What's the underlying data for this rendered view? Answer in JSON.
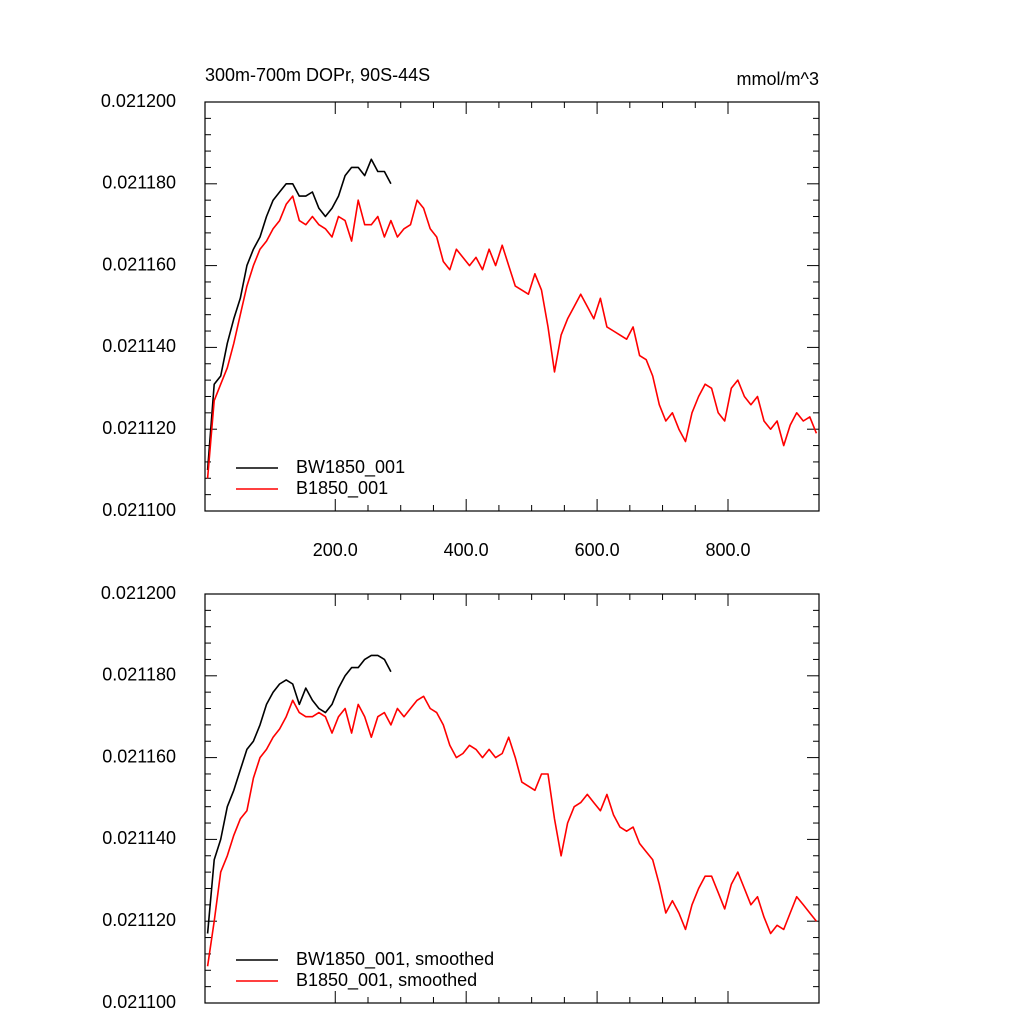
{
  "chart_data": [
    {
      "type": "line",
      "title": "300m-700m DOPr, 90S-44S",
      "y_units": "mmol/m^3",
      "xlim": [
        1,
        939
      ],
      "xticks": [
        {
          "value": 200,
          "label": "200.0"
        },
        {
          "value": 400,
          "label": "400.0"
        },
        {
          "value": 600,
          "label": "600.0"
        },
        {
          "value": 800,
          "label": "800.0"
        }
      ],
      "x_tick_labels": true,
      "ylim": [
        0.0211,
        0.0212
      ],
      "yticks": [
        {
          "value": 0.0211,
          "label": "0.021100"
        },
        {
          "value": 0.02112,
          "label": "0.021120"
        },
        {
          "value": 0.02114,
          "label": "0.021140"
        },
        {
          "value": 0.02116,
          "label": "0.021160"
        },
        {
          "value": 0.02118,
          "label": "0.021180"
        },
        {
          "value": 0.0212,
          "label": "0.021200"
        }
      ],
      "legend": "lower left",
      "x": [
        5,
        15,
        25,
        35,
        45,
        55,
        65,
        75,
        85,
        95,
        105,
        115,
        125,
        135,
        145,
        155,
        165,
        175,
        185,
        195,
        205,
        215,
        225,
        235,
        245,
        255,
        265,
        275,
        285,
        295,
        305,
        315,
        325,
        335,
        345,
        355,
        365,
        375,
        385,
        395,
        405,
        415,
        425,
        435,
        445,
        455,
        465,
        475,
        485,
        495,
        505,
        515,
        525,
        535,
        545,
        555,
        565,
        575,
        585,
        595,
        605,
        615,
        625,
        635,
        645,
        655,
        665,
        675,
        685,
        695,
        705,
        715,
        725,
        735,
        745,
        755,
        765,
        775,
        785,
        795,
        805,
        815,
        825,
        835,
        845,
        855,
        865,
        875,
        885,
        895,
        905,
        915,
        925,
        935
      ],
      "series": [
        {
          "name": "BW1850_001",
          "color": "#000000",
          "values": [
            0.02111,
            0.021131,
            0.021133,
            0.021141,
            0.021147,
            0.021152,
            0.02116,
            0.021164,
            0.021167,
            0.021172,
            0.021176,
            0.021178,
            0.02118,
            0.02118,
            0.021177,
            0.021177,
            0.021178,
            0.021174,
            0.021172,
            0.021174,
            0.021177,
            0.021182,
            0.021184,
            0.021184,
            0.021182,
            0.021186,
            0.021183,
            0.021183,
            0.02118,
            null,
            null,
            null,
            null,
            null,
            null,
            null,
            null,
            null,
            null,
            null,
            null,
            null,
            null,
            null,
            null,
            null,
            null,
            null,
            null,
            null,
            null,
            null,
            null,
            null,
            null,
            null,
            null,
            null,
            null,
            null,
            null,
            null,
            null,
            null,
            null,
            null,
            null,
            null,
            null,
            null,
            null,
            null,
            null,
            null,
            null,
            null,
            null,
            null,
            null,
            null,
            null,
            null,
            null,
            null,
            null,
            null,
            null,
            null,
            null,
            null,
            null,
            null,
            null,
            null
          ]
        },
        {
          "name": "B1850_001",
          "color": "#ff0000",
          "values": [
            0.021108,
            0.021127,
            0.021131,
            0.021135,
            0.021141,
            0.021148,
            0.021155,
            0.02116,
            0.021164,
            0.021166,
            0.021169,
            0.021171,
            0.021175,
            0.021177,
            0.021171,
            0.02117,
            0.021172,
            0.02117,
            0.021169,
            0.021167,
            0.021172,
            0.021171,
            0.021166,
            0.021176,
            0.02117,
            0.02117,
            0.021172,
            0.021167,
            0.021171,
            0.021167,
            0.021169,
            0.02117,
            0.021176,
            0.021174,
            0.021169,
            0.021167,
            0.021161,
            0.021159,
            0.021164,
            0.021162,
            0.02116,
            0.021162,
            0.021159,
            0.021164,
            0.02116,
            0.021165,
            0.02116,
            0.021155,
            0.021154,
            0.021153,
            0.021158,
            0.021154,
            0.021145,
            0.021134,
            0.021143,
            0.021147,
            0.02115,
            0.021153,
            0.02115,
            0.021147,
            0.021152,
            0.021145,
            0.021144,
            0.021143,
            0.021142,
            0.021145,
            0.021138,
            0.021137,
            0.021133,
            0.021126,
            0.021122,
            0.021124,
            0.02112,
            0.021117,
            0.021124,
            0.021128,
            0.021131,
            0.02113,
            0.021124,
            0.021122,
            0.02113,
            0.021132,
            0.021128,
            0.021126,
            0.021128,
            0.021122,
            0.02112,
            0.021122,
            0.021116,
            0.021121,
            0.021124,
            0.021122,
            0.021123,
            0.021119
          ]
        }
      ]
    },
    {
      "type": "line",
      "xlim": [
        1,
        939
      ],
      "xticks": [
        200,
        400,
        600,
        800
      ],
      "x_tick_labels": false,
      "ylim": [
        0.0211,
        0.0212
      ],
      "yticks": [
        {
          "value": 0.0211,
          "label": "0.021100"
        },
        {
          "value": 0.02112,
          "label": "0.021120"
        },
        {
          "value": 0.02114,
          "label": "0.021140"
        },
        {
          "value": 0.02116,
          "label": "0.021160"
        },
        {
          "value": 0.02118,
          "label": "0.021180"
        },
        {
          "value": 0.0212,
          "label": "0.021200"
        }
      ],
      "legend": "lower left",
      "x": [
        5,
        15,
        25,
        35,
        45,
        55,
        65,
        75,
        85,
        95,
        105,
        115,
        125,
        135,
        145,
        155,
        165,
        175,
        185,
        195,
        205,
        215,
        225,
        235,
        245,
        255,
        265,
        275,
        285,
        295,
        305,
        315,
        325,
        335,
        345,
        355,
        365,
        375,
        385,
        395,
        405,
        415,
        425,
        435,
        445,
        455,
        465,
        475,
        485,
        495,
        505,
        515,
        525,
        535,
        545,
        555,
        565,
        575,
        585,
        595,
        605,
        615,
        625,
        635,
        645,
        655,
        665,
        675,
        685,
        695,
        705,
        715,
        725,
        735,
        745,
        755,
        765,
        775,
        785,
        795,
        805,
        815,
        825,
        835,
        845,
        855,
        865,
        875,
        885,
        895,
        905,
        915,
        925,
        935
      ],
      "series": [
        {
          "name": "BW1850_001, smoothed",
          "color": "#000000",
          "values": [
            0.021117,
            0.021135,
            0.02114,
            0.021148,
            0.021152,
            0.021157,
            0.021162,
            0.021164,
            0.021168,
            0.021173,
            0.021176,
            0.021178,
            0.021179,
            0.021178,
            0.021173,
            0.021177,
            0.021174,
            0.021172,
            0.021171,
            0.021173,
            0.021177,
            0.02118,
            0.021182,
            0.021182,
            0.021184,
            0.021185,
            0.021185,
            0.021184,
            0.021181,
            null,
            null,
            null,
            null,
            null,
            null,
            null,
            null,
            null,
            null,
            null,
            null,
            null,
            null,
            null,
            null,
            null,
            null,
            null,
            null,
            null,
            null,
            null,
            null,
            null,
            null,
            null,
            null,
            null,
            null,
            null,
            null,
            null,
            null,
            null,
            null,
            null,
            null,
            null,
            null,
            null,
            null,
            null,
            null,
            null,
            null,
            null,
            null,
            null,
            null,
            null,
            null,
            null,
            null,
            null,
            null,
            null,
            null,
            null,
            null,
            null,
            null,
            null,
            null,
            null
          ]
        },
        {
          "name": "B1850_001, smoothed",
          "color": "#ff0000",
          "values": [
            0.021109,
            0.02112,
            0.021132,
            0.021136,
            0.021141,
            0.021145,
            0.021147,
            0.021155,
            0.02116,
            0.021162,
            0.021165,
            0.021167,
            0.02117,
            0.021174,
            0.021171,
            0.02117,
            0.02117,
            0.021171,
            0.02117,
            0.021166,
            0.02117,
            0.021172,
            0.021166,
            0.021173,
            0.02117,
            0.021165,
            0.02117,
            0.021171,
            0.021168,
            0.021172,
            0.02117,
            0.021172,
            0.021174,
            0.021175,
            0.021172,
            0.021171,
            0.021168,
            0.021163,
            0.02116,
            0.021161,
            0.021163,
            0.021162,
            0.02116,
            0.021162,
            0.02116,
            0.021161,
            0.021165,
            0.02116,
            0.021154,
            0.021153,
            0.021152,
            0.021156,
            0.021156,
            0.021145,
            0.021136,
            0.021144,
            0.021148,
            0.021149,
            0.021151,
            0.021149,
            0.021147,
            0.021151,
            0.021146,
            0.021143,
            0.021142,
            0.021143,
            0.021139,
            0.021137,
            0.021135,
            0.021129,
            0.021122,
            0.021125,
            0.021122,
            0.021118,
            0.021124,
            0.021128,
            0.021131,
            0.021131,
            0.021127,
            0.021123,
            0.021129,
            0.021132,
            0.021128,
            0.021124,
            0.021126,
            0.021121,
            0.021117,
            0.021119,
            0.021118,
            0.021122,
            0.021126,
            0.021124,
            0.021122,
            0.02112
          ]
        }
      ]
    }
  ]
}
